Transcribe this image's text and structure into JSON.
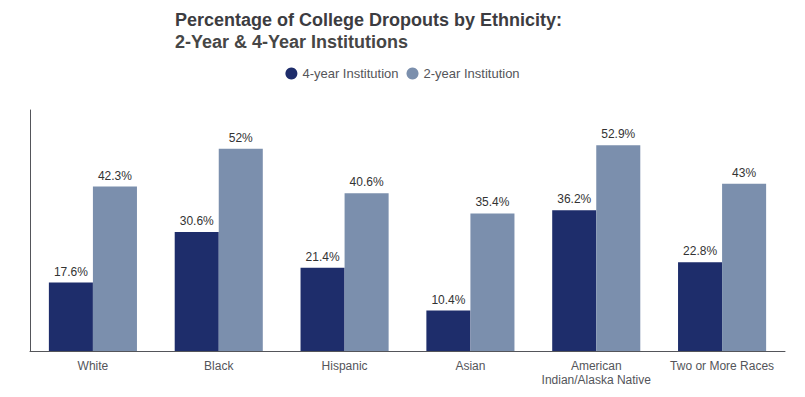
{
  "chart_data": {
    "type": "bar",
    "title": "Percentage of College Dropouts by Ethnicity:",
    "subtitle": "2-Year & 4-Year Institutions",
    "categories": [
      "White",
      "Black",
      "Hispanic",
      "Asian",
      "American\nIndian/Alaska Native",
      "Two or More Races"
    ],
    "series": [
      {
        "name": "4-year Institution",
        "color": "#1e2d6b",
        "values": [
          17.6,
          30.6,
          21.4,
          10.4,
          36.2,
          22.8
        ],
        "value_labels": [
          "17.6%",
          "30.6%",
          "21.4%",
          "10.4%",
          "36.2%",
          "22.8%"
        ]
      },
      {
        "name": "2-year Institution",
        "color": "#7b8fad",
        "values": [
          42.3,
          52.0,
          40.6,
          35.4,
          52.9,
          43.0
        ],
        "value_labels": [
          "42.3%",
          "52%",
          "40.6%",
          "35.4%",
          "52.9%",
          "43%"
        ]
      }
    ],
    "ylim": [
      0,
      62
    ],
    "grid": false,
    "legend": "top",
    "data_labels": true,
    "tick_labels": "x"
  }
}
